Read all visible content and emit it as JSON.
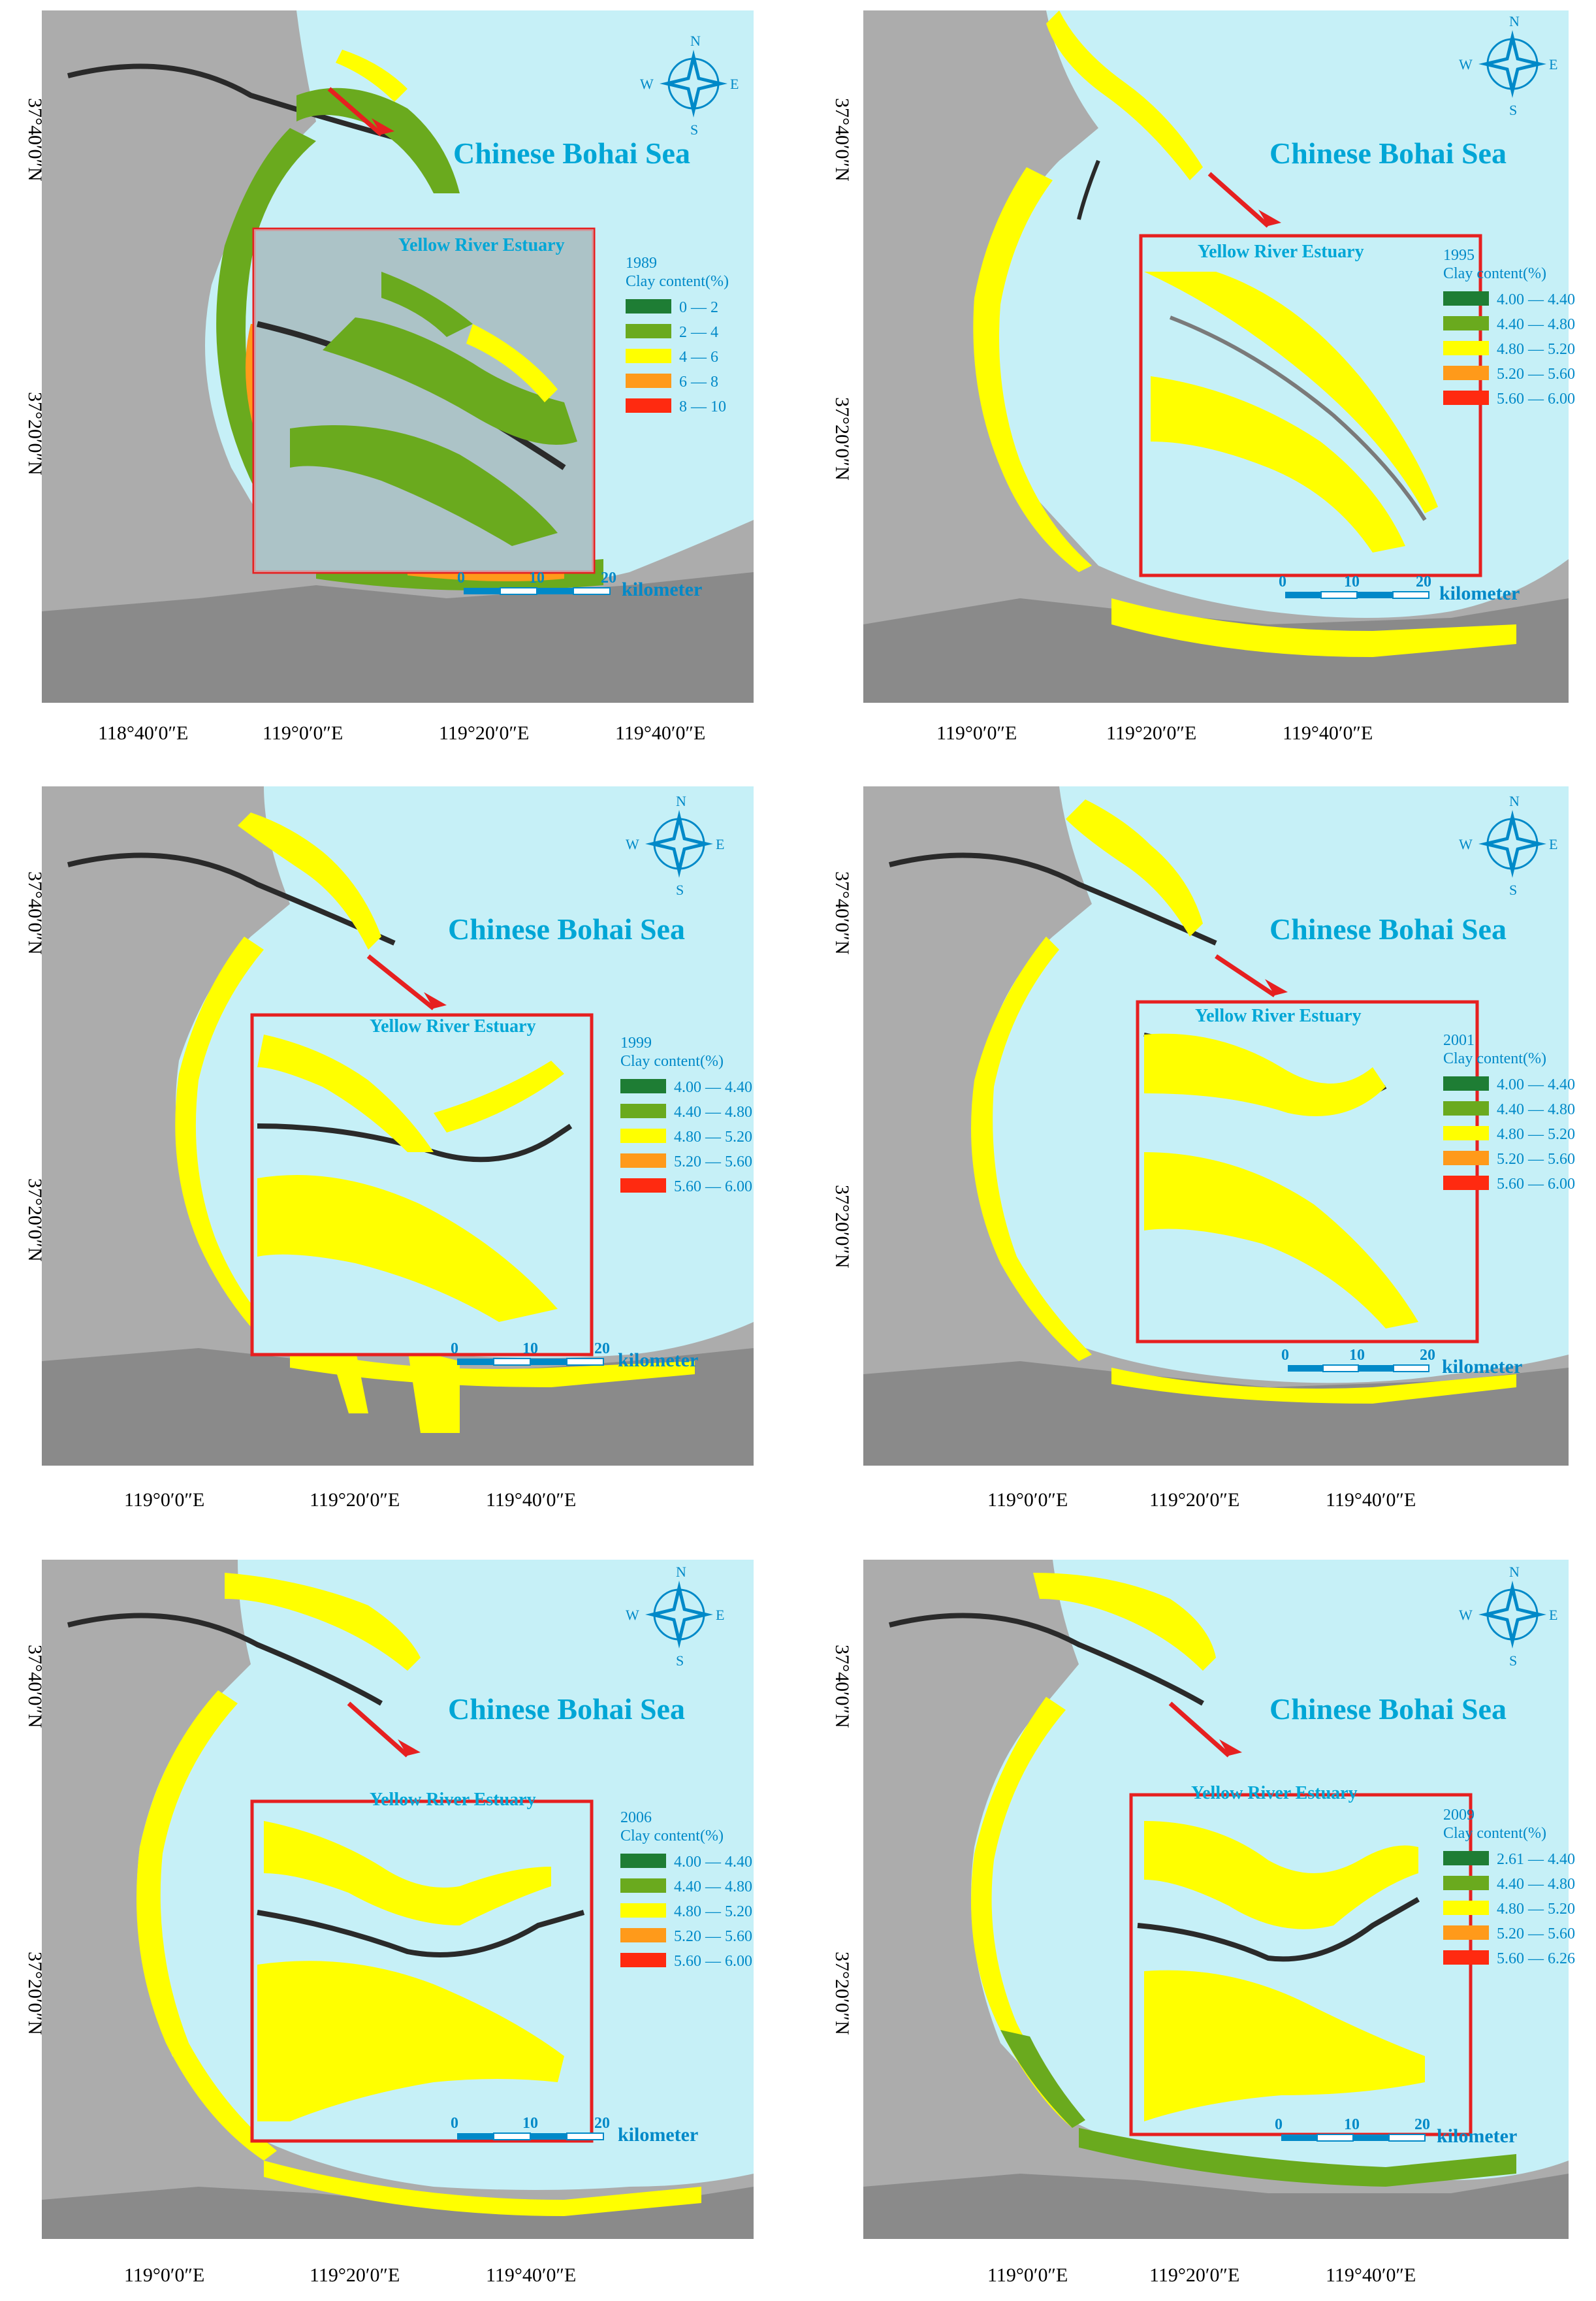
{
  "common": {
    "sea_label": "Chinese Bohai Sea",
    "estuary_label": "Yellow River Estuary",
    "legend_heading": "Clay content(%)",
    "scale_ticks": [
      "0",
      "10",
      "20"
    ],
    "scale_unit": "kilometer",
    "compass": {
      "n": "N",
      "s": "S",
      "e": "E",
      "w": "W"
    },
    "lat_labels": [
      "37°40′0″N",
      "37°20′0″N"
    ],
    "colors": {
      "sea": "#c6f0f7",
      "land": "#9a9a9a",
      "frame": "#e62020",
      "class1": "#1e7d34",
      "class2": "#6aaa1e",
      "class3": "#ffff00",
      "class4": "#ff9a1a",
      "class5": "#ff2a10"
    }
  },
  "panels": [
    {
      "year": "1989",
      "lon_labels": [
        "118°40′0″E",
        "119°0′0″E",
        "119°20′0″E",
        "119°40′0″E"
      ],
      "legend": [
        "0 — 2",
        "2 — 4",
        "4 — 6",
        "6 — 8",
        "8 — 10"
      ]
    },
    {
      "year": "1995",
      "lon_labels": [
        "119°0′0″E",
        "119°20′0″E",
        "119°40′0″E"
      ],
      "legend": [
        "4.00 — 4.40",
        "4.40 — 4.80",
        "4.80 — 5.20",
        "5.20 — 5.60",
        "5.60 — 6.00"
      ]
    },
    {
      "year": "1999",
      "lon_labels": [
        "119°0′0″E",
        "119°20′0″E",
        "119°40′0″E"
      ],
      "legend": [
        "4.00 — 4.40",
        "4.40 — 4.80",
        "4.80 — 5.20",
        "5.20 — 5.60",
        "5.60 — 6.00"
      ]
    },
    {
      "year": "2001",
      "lon_labels": [
        "119°0′0″E",
        "119°20′0″E",
        "119°40′0″E"
      ],
      "legend": [
        "4.00 — 4.40",
        "4.40 — 4.80",
        "4.80 — 5.20",
        "5.20 — 5.60",
        "5.60 — 6.00"
      ]
    },
    {
      "year": "2006",
      "lon_labels": [
        "119°0′0″E",
        "119°20′0″E",
        "119°40′0″E"
      ],
      "legend": [
        "4.00 — 4.40",
        "4.40 — 4.80",
        "4.80 — 5.20",
        "5.20 — 5.60",
        "5.60 — 6.00"
      ]
    },
    {
      "year": "2009",
      "lon_labels": [
        "119°0′0″E",
        "119°20′0″E",
        "119°40′0″E"
      ],
      "legend": [
        "2.61 — 4.40",
        "4.40 — 4.80",
        "4.80 — 5.20",
        "5.20 — 5.60",
        "5.60 — 6.26"
      ]
    }
  ]
}
